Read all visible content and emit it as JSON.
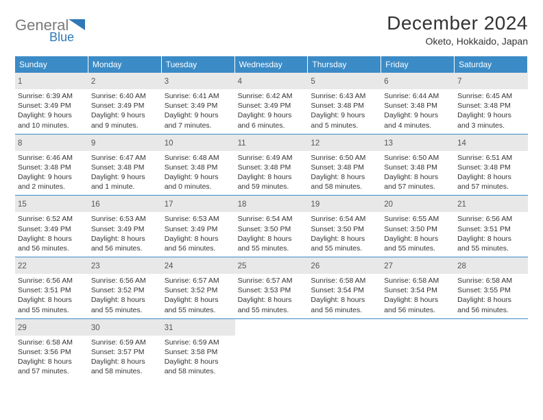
{
  "logo": {
    "brand_part1": "General",
    "brand_part2": "Blue",
    "color1": "#7a7a7a",
    "color2": "#2f78b7"
  },
  "title": {
    "month": "December 2024",
    "location": "Oketo, Hokkaido, Japan"
  },
  "colors": {
    "header_bg": "#3b8bc6",
    "daynum_bg": "#e8e8e8",
    "rule": "#3b8bc6"
  },
  "day_headers": [
    "Sunday",
    "Monday",
    "Tuesday",
    "Wednesday",
    "Thursday",
    "Friday",
    "Saturday"
  ],
  "weeks": [
    [
      {
        "n": "1",
        "sr": "Sunrise: 6:39 AM",
        "ss": "Sunset: 3:49 PM",
        "d1": "Daylight: 9 hours",
        "d2": "and 10 minutes."
      },
      {
        "n": "2",
        "sr": "Sunrise: 6:40 AM",
        "ss": "Sunset: 3:49 PM",
        "d1": "Daylight: 9 hours",
        "d2": "and 9 minutes."
      },
      {
        "n": "3",
        "sr": "Sunrise: 6:41 AM",
        "ss": "Sunset: 3:49 PM",
        "d1": "Daylight: 9 hours",
        "d2": "and 7 minutes."
      },
      {
        "n": "4",
        "sr": "Sunrise: 6:42 AM",
        "ss": "Sunset: 3:49 PM",
        "d1": "Daylight: 9 hours",
        "d2": "and 6 minutes."
      },
      {
        "n": "5",
        "sr": "Sunrise: 6:43 AM",
        "ss": "Sunset: 3:48 PM",
        "d1": "Daylight: 9 hours",
        "d2": "and 5 minutes."
      },
      {
        "n": "6",
        "sr": "Sunrise: 6:44 AM",
        "ss": "Sunset: 3:48 PM",
        "d1": "Daylight: 9 hours",
        "d2": "and 4 minutes."
      },
      {
        "n": "7",
        "sr": "Sunrise: 6:45 AM",
        "ss": "Sunset: 3:48 PM",
        "d1": "Daylight: 9 hours",
        "d2": "and 3 minutes."
      }
    ],
    [
      {
        "n": "8",
        "sr": "Sunrise: 6:46 AM",
        "ss": "Sunset: 3:48 PM",
        "d1": "Daylight: 9 hours",
        "d2": "and 2 minutes."
      },
      {
        "n": "9",
        "sr": "Sunrise: 6:47 AM",
        "ss": "Sunset: 3:48 PM",
        "d1": "Daylight: 9 hours",
        "d2": "and 1 minute."
      },
      {
        "n": "10",
        "sr": "Sunrise: 6:48 AM",
        "ss": "Sunset: 3:48 PM",
        "d1": "Daylight: 9 hours",
        "d2": "and 0 minutes."
      },
      {
        "n": "11",
        "sr": "Sunrise: 6:49 AM",
        "ss": "Sunset: 3:48 PM",
        "d1": "Daylight: 8 hours",
        "d2": "and 59 minutes."
      },
      {
        "n": "12",
        "sr": "Sunrise: 6:50 AM",
        "ss": "Sunset: 3:48 PM",
        "d1": "Daylight: 8 hours",
        "d2": "and 58 minutes."
      },
      {
        "n": "13",
        "sr": "Sunrise: 6:50 AM",
        "ss": "Sunset: 3:48 PM",
        "d1": "Daylight: 8 hours",
        "d2": "and 57 minutes."
      },
      {
        "n": "14",
        "sr": "Sunrise: 6:51 AM",
        "ss": "Sunset: 3:48 PM",
        "d1": "Daylight: 8 hours",
        "d2": "and 57 minutes."
      }
    ],
    [
      {
        "n": "15",
        "sr": "Sunrise: 6:52 AM",
        "ss": "Sunset: 3:49 PM",
        "d1": "Daylight: 8 hours",
        "d2": "and 56 minutes."
      },
      {
        "n": "16",
        "sr": "Sunrise: 6:53 AM",
        "ss": "Sunset: 3:49 PM",
        "d1": "Daylight: 8 hours",
        "d2": "and 56 minutes."
      },
      {
        "n": "17",
        "sr": "Sunrise: 6:53 AM",
        "ss": "Sunset: 3:49 PM",
        "d1": "Daylight: 8 hours",
        "d2": "and 56 minutes."
      },
      {
        "n": "18",
        "sr": "Sunrise: 6:54 AM",
        "ss": "Sunset: 3:50 PM",
        "d1": "Daylight: 8 hours",
        "d2": "and 55 minutes."
      },
      {
        "n": "19",
        "sr": "Sunrise: 6:54 AM",
        "ss": "Sunset: 3:50 PM",
        "d1": "Daylight: 8 hours",
        "d2": "and 55 minutes."
      },
      {
        "n": "20",
        "sr": "Sunrise: 6:55 AM",
        "ss": "Sunset: 3:50 PM",
        "d1": "Daylight: 8 hours",
        "d2": "and 55 minutes."
      },
      {
        "n": "21",
        "sr": "Sunrise: 6:56 AM",
        "ss": "Sunset: 3:51 PM",
        "d1": "Daylight: 8 hours",
        "d2": "and 55 minutes."
      }
    ],
    [
      {
        "n": "22",
        "sr": "Sunrise: 6:56 AM",
        "ss": "Sunset: 3:51 PM",
        "d1": "Daylight: 8 hours",
        "d2": "and 55 minutes."
      },
      {
        "n": "23",
        "sr": "Sunrise: 6:56 AM",
        "ss": "Sunset: 3:52 PM",
        "d1": "Daylight: 8 hours",
        "d2": "and 55 minutes."
      },
      {
        "n": "24",
        "sr": "Sunrise: 6:57 AM",
        "ss": "Sunset: 3:52 PM",
        "d1": "Daylight: 8 hours",
        "d2": "and 55 minutes."
      },
      {
        "n": "25",
        "sr": "Sunrise: 6:57 AM",
        "ss": "Sunset: 3:53 PM",
        "d1": "Daylight: 8 hours",
        "d2": "and 55 minutes."
      },
      {
        "n": "26",
        "sr": "Sunrise: 6:58 AM",
        "ss": "Sunset: 3:54 PM",
        "d1": "Daylight: 8 hours",
        "d2": "and 56 minutes."
      },
      {
        "n": "27",
        "sr": "Sunrise: 6:58 AM",
        "ss": "Sunset: 3:54 PM",
        "d1": "Daylight: 8 hours",
        "d2": "and 56 minutes."
      },
      {
        "n": "28",
        "sr": "Sunrise: 6:58 AM",
        "ss": "Sunset: 3:55 PM",
        "d1": "Daylight: 8 hours",
        "d2": "and 56 minutes."
      }
    ],
    [
      {
        "n": "29",
        "sr": "Sunrise: 6:58 AM",
        "ss": "Sunset: 3:56 PM",
        "d1": "Daylight: 8 hours",
        "d2": "and 57 minutes."
      },
      {
        "n": "30",
        "sr": "Sunrise: 6:59 AM",
        "ss": "Sunset: 3:57 PM",
        "d1": "Daylight: 8 hours",
        "d2": "and 58 minutes."
      },
      {
        "n": "31",
        "sr": "Sunrise: 6:59 AM",
        "ss": "Sunset: 3:58 PM",
        "d1": "Daylight: 8 hours",
        "d2": "and 58 minutes."
      }
    ]
  ]
}
